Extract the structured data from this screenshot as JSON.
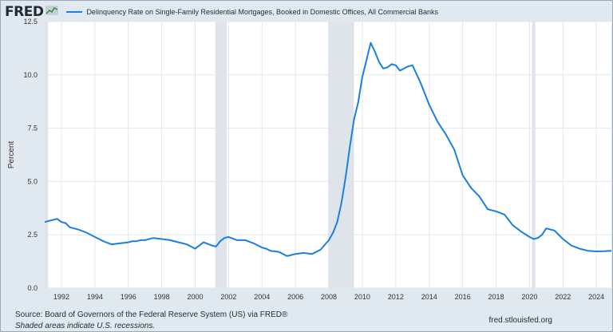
{
  "header": {
    "logo": "FRED",
    "logo_icon": "line-chart-icon",
    "legend_label": "Delinquency Rate on Single-Family Residential Mortgages, Booked in Domestic Offices, All Commercial Banks"
  },
  "footer": {
    "source": "Source: Board of Governors of the Federal Reserve System (US) via FRED®",
    "note": "Shaded areas indicate U.S. recessions.",
    "site": "fred.stlouisfed.org"
  },
  "colors": {
    "line": "#1b7fe0",
    "recession": "#dfe4ea",
    "grid": "#e3e7ec"
  },
  "chart_data": {
    "type": "line",
    "ylabel": "Percent",
    "xlim": [
      1991.0,
      2024.9
    ],
    "ylim": [
      0,
      12.5
    ],
    "yticks": [
      0.0,
      2.5,
      5.0,
      7.5,
      10.0,
      12.5
    ],
    "ytick_labels": [
      "0.0",
      "2.5",
      "5.0",
      "7.5",
      "10.0",
      "12.5"
    ],
    "xticks": [
      1992,
      1994,
      1996,
      1998,
      2000,
      2002,
      2004,
      2006,
      2008,
      2010,
      2012,
      2014,
      2016,
      2018,
      2020,
      2022,
      2024
    ],
    "xtick_labels": [
      "1992",
      "1994",
      "1996",
      "1998",
      "2000",
      "2002",
      "2004",
      "2006",
      "2008",
      "2010",
      "2012",
      "2014",
      "2016",
      "2018",
      "2020",
      "2022",
      "2024"
    ],
    "recessions": [
      [
        1991.0,
        1991.2
      ],
      [
        2001.2,
        2001.9
      ],
      [
        2007.95,
        2009.5
      ],
      [
        2020.15,
        2020.35
      ]
    ],
    "grid": true,
    "legend_position": "top-left",
    "series": [
      {
        "x": [
          1991.0,
          1991.5,
          1991.75,
          1992.0,
          1992.25,
          1992.5,
          1992.75,
          1993.0,
          1993.5,
          1994.0,
          1994.5,
          1995.0,
          1995.5,
          1996.0,
          1996.25,
          1996.5,
          1996.75,
          1997.0,
          1997.5,
          1998.0,
          1998.5,
          1999.0,
          1999.25,
          1999.5,
          1999.75,
          2000.0,
          2000.5,
          2001.0,
          2001.25,
          2001.5,
          2001.75,
          2002.0,
          2002.5,
          2003.0,
          2003.5,
          2004.0,
          2004.25,
          2004.5,
          2005.0,
          2005.25,
          2005.5,
          2006.0,
          2006.5,
          2007.0,
          2007.5,
          2008.0,
          2008.25,
          2008.5,
          2008.75,
          2009.0,
          2009.25,
          2009.5,
          2009.75,
          2010.0,
          2010.25,
          2010.5,
          2010.75,
          2011.0,
          2011.25,
          2011.5,
          2011.75,
          2012.0,
          2012.25,
          2012.5,
          2012.75,
          2013.0,
          2013.5,
          2014.0,
          2014.5,
          2015.0,
          2015.5,
          2016.0,
          2016.5,
          2017.0,
          2017.5,
          2018.0,
          2018.5,
          2019.0,
          2019.5,
          2020.0,
          2020.25,
          2020.5,
          2020.75,
          2021.0,
          2021.5,
          2022.0,
          2022.5,
          2023.0,
          2023.5,
          2024.0,
          2024.5,
          2024.9
        ],
        "values": [
          3.1,
          3.2,
          3.25,
          3.1,
          3.05,
          2.85,
          2.8,
          2.75,
          2.6,
          2.4,
          2.2,
          2.05,
          2.1,
          2.15,
          2.2,
          2.2,
          2.25,
          2.25,
          2.35,
          2.3,
          2.25,
          2.15,
          2.1,
          2.05,
          1.95,
          1.85,
          2.15,
          2.0,
          1.95,
          2.2,
          2.35,
          2.4,
          2.25,
          2.25,
          2.1,
          1.9,
          1.85,
          1.75,
          1.7,
          1.6,
          1.5,
          1.6,
          1.65,
          1.6,
          1.8,
          2.25,
          2.6,
          3.1,
          4.0,
          5.2,
          6.6,
          7.9,
          8.7,
          9.9,
          10.7,
          11.5,
          11.1,
          10.6,
          10.3,
          10.35,
          10.5,
          10.45,
          10.2,
          10.3,
          10.4,
          10.45,
          9.6,
          8.6,
          7.8,
          7.2,
          6.5,
          5.3,
          4.7,
          4.3,
          3.7,
          3.6,
          3.45,
          2.95,
          2.65,
          2.4,
          2.3,
          2.35,
          2.5,
          2.8,
          2.7,
          2.3,
          2.0,
          1.85,
          1.75,
          1.72,
          1.73,
          1.75
        ]
      }
    ]
  }
}
